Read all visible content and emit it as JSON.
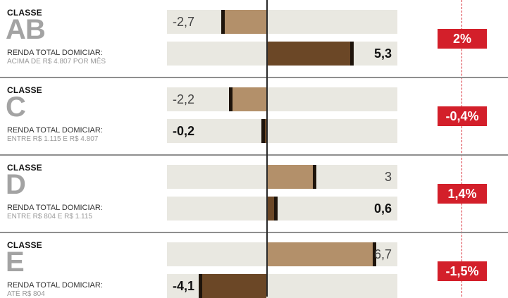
{
  "colors": {
    "light_bar": "#b3906a",
    "dark_bar": "#6b4726",
    "track": "#e9e8e1",
    "badge": "#d31f2a"
  },
  "chart_data": {
    "type": "bar",
    "orientation": "horizontal",
    "scale": [
      -5.2,
      7.8
    ],
    "rows": [
      {
        "classe_label": "CLASSE",
        "letter": "AB",
        "renda_label": "RENDA TOTAL DOMICIAR:",
        "income_range": "ACIMA DE R$ 4.807 POR MÊS",
        "top_value": -2.7,
        "top_label": "-2,7",
        "bottom_value": 5.3,
        "bottom_label": "5,3",
        "change_label": "2%"
      },
      {
        "classe_label": "CLASSE",
        "letter": "C",
        "renda_label": "RENDA TOTAL DOMICIAR:",
        "income_range": "ENTRE R$ 1.115 E R$ 4.807",
        "top_value": -2.2,
        "top_label": "-2,2",
        "bottom_value": -0.2,
        "bottom_label": "-0,2",
        "change_label": "-0,4%"
      },
      {
        "classe_label": "CLASSE",
        "letter": "D",
        "renda_label": "RENDA TOTAL DOMICIAR:",
        "income_range": "ENTRE R$ 804 E R$ 1.115",
        "top_value": 3,
        "top_label": "3",
        "bottom_value": 0.6,
        "bottom_label": "0,6",
        "change_label": "1,4%"
      },
      {
        "classe_label": "CLASSE",
        "letter": "E",
        "renda_label": "RENDA TOTAL DOMICIAR:",
        "income_range": "ATÉ R$ 804",
        "top_value": 6.7,
        "top_label": "6,7",
        "bottom_value": -4.1,
        "bottom_label": "-4,1",
        "change_label": "-1,5%"
      }
    ]
  }
}
